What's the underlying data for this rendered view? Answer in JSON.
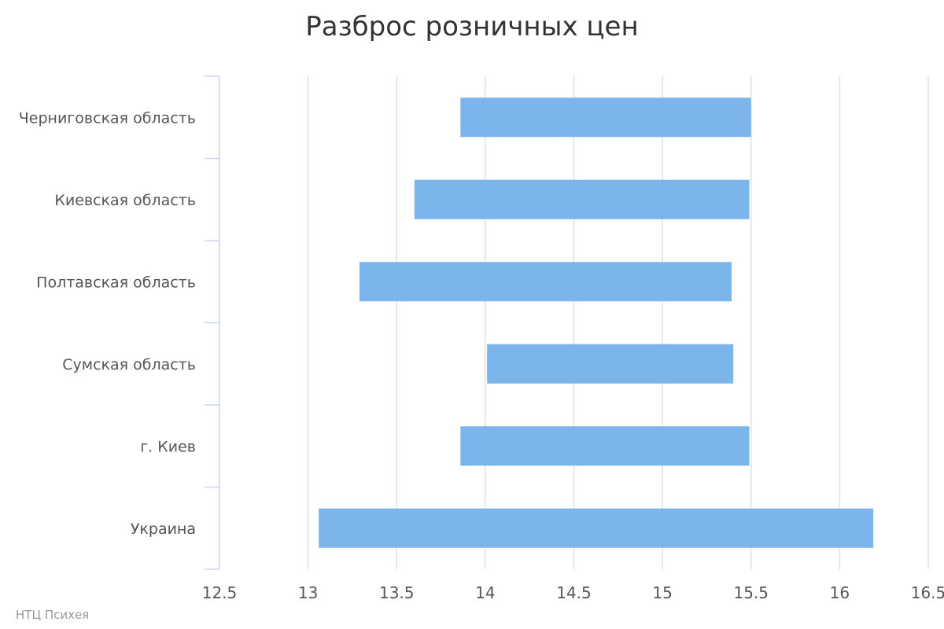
{
  "chart_data": {
    "type": "bar",
    "orientation": "horizontal",
    "style": "floating-range",
    "title": "Разброс розничных цен",
    "categories": [
      "Черниговская область",
      "Киевская область",
      "Полтавская область",
      "Сумская область",
      "г. Киев",
      "Украина"
    ],
    "series": [
      {
        "ranges": [
          [
            13.86,
            15.5
          ],
          [
            13.6,
            15.49
          ],
          [
            13.29,
            15.39
          ],
          [
            14.01,
            15.4
          ],
          [
            13.86,
            15.49
          ],
          [
            13.06,
            16.19
          ]
        ]
      }
    ],
    "xlim": [
      12.5,
      16.5
    ],
    "xticks": [
      "12.5",
      "13",
      "13.5",
      "14",
      "14.5",
      "15",
      "15.5",
      "16",
      "16.5"
    ],
    "grid": true,
    "legend": "none",
    "bar_color": "#7cb5ec"
  },
  "credits": "НТЦ Психея"
}
